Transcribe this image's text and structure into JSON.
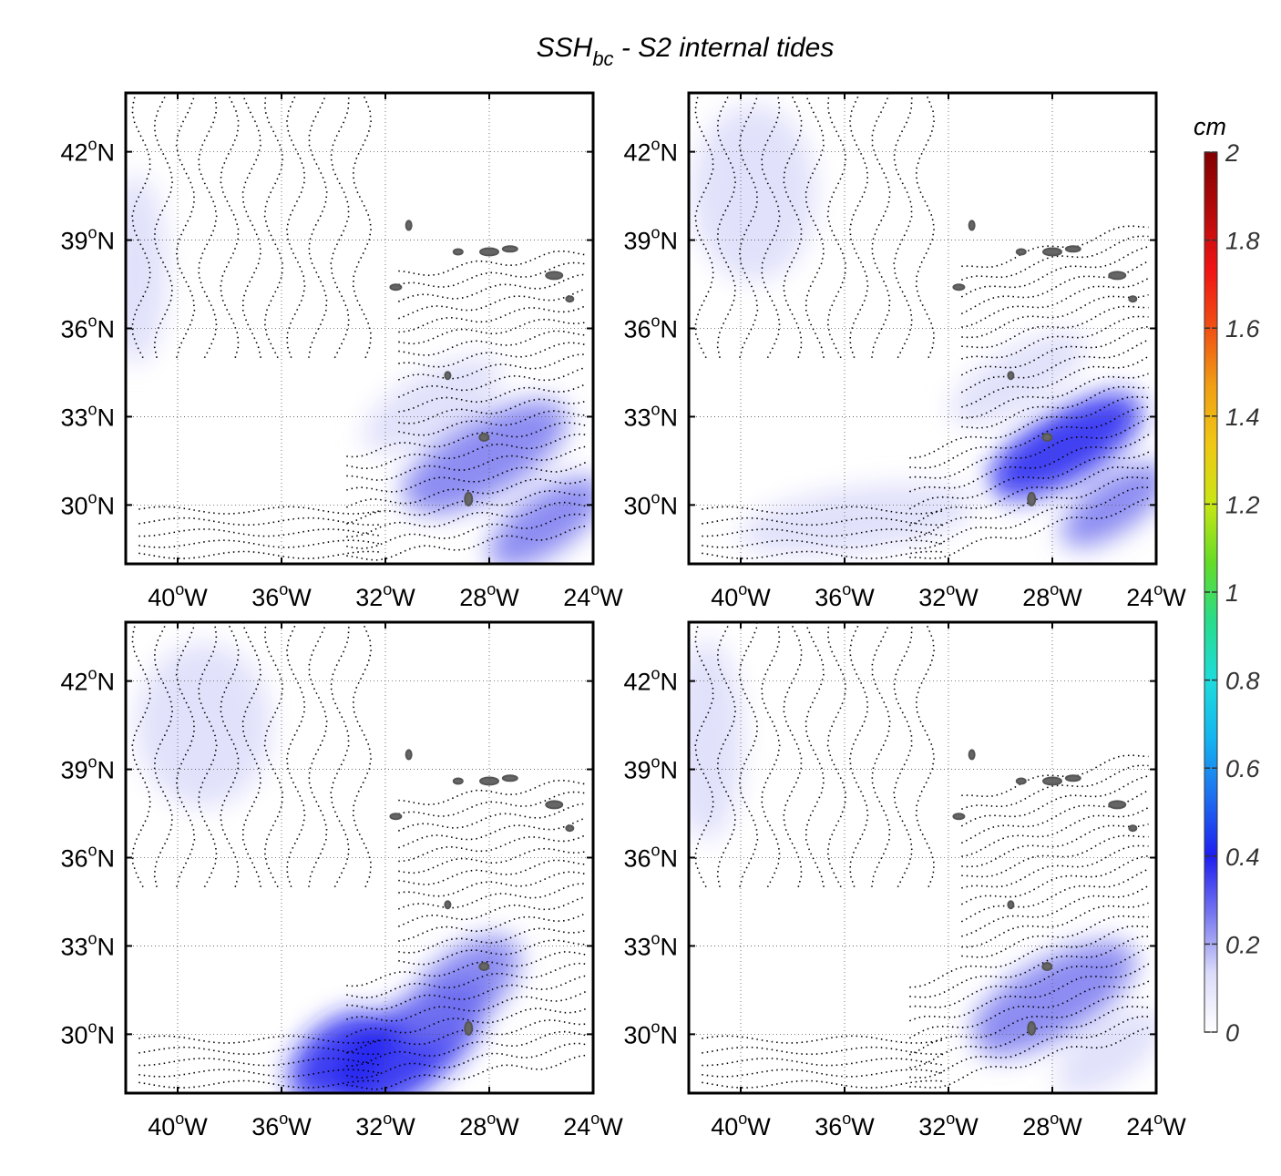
{
  "figure": {
    "title_main": "SSH",
    "title_sub": "bc",
    "title_rest": " - S2 internal tides"
  },
  "axes": {
    "lat_ticks": [
      {
        "value": 42,
        "num": "42",
        "hemi": "N"
      },
      {
        "value": 39,
        "num": "39",
        "hemi": "N"
      },
      {
        "value": 36,
        "num": "36",
        "hemi": "N"
      },
      {
        "value": 33,
        "num": "33",
        "hemi": "N"
      },
      {
        "value": 30,
        "num": "30",
        "hemi": "N"
      }
    ],
    "lon_ticks": [
      {
        "value": -40,
        "num": "40",
        "hemi": "W"
      },
      {
        "value": -36,
        "num": "36",
        "hemi": "W"
      },
      {
        "value": -32,
        "num": "32",
        "hemi": "W"
      },
      {
        "value": -28,
        "num": "28",
        "hemi": "W"
      },
      {
        "value": -24,
        "num": "24",
        "hemi": "W"
      }
    ],
    "degree_symbol": "o",
    "lon_range": [
      -42,
      -24
    ],
    "lat_range": [
      28,
      44
    ],
    "grid": "dotted"
  },
  "colorbar": {
    "unit": "cm",
    "ticks": [
      "0",
      "0.2",
      "0.4",
      "0.6",
      "0.8",
      "1",
      "1.2",
      "1.4",
      "1.6",
      "1.8",
      "2"
    ],
    "range": [
      0,
      2
    ],
    "colormap": [
      "#ffffff",
      "#dcdcfa",
      "#7878f0",
      "#1e1ef0",
      "#1e6ef0",
      "#14b4f0",
      "#1edcdc",
      "#28dc8c",
      "#64dc28",
      "#c8e614",
      "#f0c814",
      "#f0a014",
      "#f05014",
      "#f01414",
      "#b40a0a",
      "#820000"
    ]
  },
  "panels": [
    {
      "id": "top-left",
      "hotspots": [
        {
          "lon": -28.2,
          "lat": 31.6,
          "value": 0.26,
          "rx": 3.6,
          "ry": 1.3,
          "rot": -30
        },
        {
          "lon": -30.2,
          "lat": 33.4,
          "value": 0.14,
          "rx": 3.0,
          "ry": 1.1,
          "rot": -30
        },
        {
          "lon": -25.8,
          "lat": 29.4,
          "value": 0.24,
          "rx": 2.6,
          "ry": 1.0,
          "rot": -35
        },
        {
          "lon": -41.6,
          "lat": 38.0,
          "value": 0.08,
          "rx": 1.2,
          "ry": 3.2,
          "rot": 0
        },
        {
          "lon": -35.5,
          "lat": 29.4,
          "value": 0.05,
          "rx": 5.0,
          "ry": 0.9,
          "rot": 0
        }
      ]
    },
    {
      "id": "top-right",
      "hotspots": [
        {
          "lon": -27.5,
          "lat": 32.0,
          "value": 0.36,
          "rx": 3.3,
          "ry": 1.2,
          "rot": -30
        },
        {
          "lon": -25.6,
          "lat": 30.0,
          "value": 0.33,
          "rx": 2.4,
          "ry": 0.9,
          "rot": -35
        },
        {
          "lon": -29.3,
          "lat": 34.3,
          "value": 0.16,
          "rx": 3.0,
          "ry": 1.0,
          "rot": -30
        },
        {
          "lon": -39.5,
          "lat": 40.6,
          "value": 0.12,
          "rx": 2.4,
          "ry": 3.0,
          "rot": 0
        },
        {
          "lon": -35.5,
          "lat": 29.5,
          "value": 0.1,
          "rx": 4.6,
          "ry": 1.1,
          "rot": -8
        }
      ]
    },
    {
      "id": "bottom-left",
      "hotspots": [
        {
          "lon": -31.0,
          "lat": 29.6,
          "value": 0.46,
          "rx": 3.6,
          "ry": 1.4,
          "rot": -40
        },
        {
          "lon": -33.8,
          "lat": 29.2,
          "value": 0.34,
          "rx": 2.2,
          "ry": 1.2,
          "rot": -40
        },
        {
          "lon": -29.0,
          "lat": 31.6,
          "value": 0.24,
          "rx": 2.6,
          "ry": 1.2,
          "rot": -40
        },
        {
          "lon": -39.0,
          "lat": 40.5,
          "value": 0.1,
          "rx": 2.6,
          "ry": 2.8,
          "rot": 0
        }
      ]
    },
    {
      "id": "bottom-right",
      "hotspots": [
        {
          "lon": -28.0,
          "lat": 31.2,
          "value": 0.2,
          "rx": 3.6,
          "ry": 1.3,
          "rot": -30
        },
        {
          "lon": -25.8,
          "lat": 29.4,
          "value": 0.18,
          "rx": 2.4,
          "ry": 1.0,
          "rot": -35
        },
        {
          "lon": -41.3,
          "lat": 40.0,
          "value": 0.16,
          "rx": 1.4,
          "ry": 3.4,
          "rot": 0
        },
        {
          "lon": -35.5,
          "lat": 29.5,
          "value": 0.06,
          "rx": 4.6,
          "ry": 0.9,
          "rot": 0
        }
      ]
    }
  ]
}
